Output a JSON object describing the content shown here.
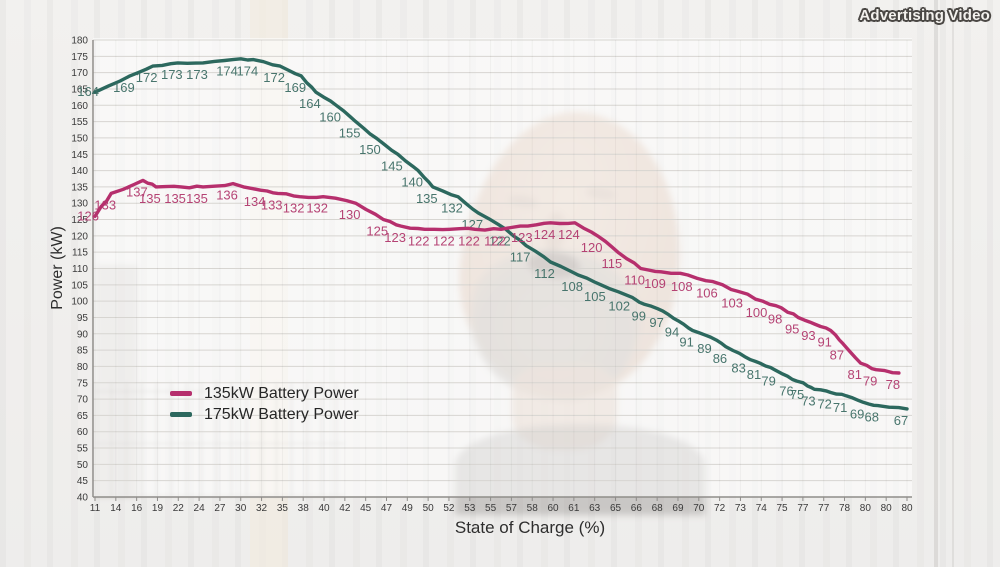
{
  "badge": {
    "label": "Advertising Video"
  },
  "chart_data": {
    "type": "line",
    "title": "",
    "xlabel": "State of Charge (%)",
    "ylabel": "Power (kW)",
    "ylim": [
      40,
      180
    ],
    "ytick_step": 5,
    "grid": true,
    "legend_position": "inside-lower-left",
    "x_tick_labels": [
      "11",
      "14",
      "16",
      "19",
      "22",
      "24",
      "27",
      "30",
      "32",
      "35",
      "38",
      "40",
      "42",
      "45",
      "47",
      "49",
      "50",
      "52",
      "53",
      "55",
      "57",
      "58",
      "60",
      "61",
      "63",
      "65",
      "66",
      "68",
      "69",
      "70",
      "72",
      "73",
      "74",
      "75",
      "77",
      "77",
      "78",
      "80",
      "80",
      "80"
    ],
    "series": [
      {
        "name": "135kW Battery Power",
        "color": "#b62f6d",
        "label_color": "#b23a6e",
        "values": [
          126,
          133,
          137,
          135,
          135,
          135,
          136,
          134,
          133,
          132,
          132,
          130,
          125,
          123,
          122,
          122,
          122,
          122,
          123,
          124,
          124,
          120,
          115,
          110,
          109,
          108,
          106,
          103,
          100,
          98,
          95,
          93,
          91,
          87,
          81,
          79,
          78
        ],
        "x_frac": [
          0,
          0.02,
          0.059,
          0.075,
          0.106,
          0.133,
          0.17,
          0.204,
          0.225,
          0.252,
          0.281,
          0.321,
          0.355,
          0.377,
          0.406,
          0.437,
          0.468,
          0.5,
          0.533,
          0.561,
          0.591,
          0.619,
          0.644,
          0.672,
          0.697,
          0.73,
          0.761,
          0.792,
          0.822,
          0.845,
          0.866,
          0.886,
          0.906,
          0.921,
          0.943,
          0.962,
          0.99
        ]
      },
      {
        "name": "175kW Battery Power",
        "color": "#2c685e",
        "label_color": "#3f6f66",
        "values": [
          164,
          169,
          172,
          173,
          173,
          174,
          174,
          172,
          169,
          164,
          160,
          155,
          150,
          145,
          140,
          135,
          132,
          127,
          122,
          117,
          112,
          108,
          105,
          102,
          99,
          97,
          94,
          91,
          89,
          86,
          83,
          81,
          79,
          76,
          75,
          73,
          72,
          71,
          69,
          68,
          67
        ],
        "x_frac": [
          0,
          0.043,
          0.071,
          0.102,
          0.133,
          0.17,
          0.195,
          0.228,
          0.254,
          0.272,
          0.297,
          0.321,
          0.346,
          0.373,
          0.398,
          0.416,
          0.447,
          0.472,
          0.506,
          0.531,
          0.561,
          0.595,
          0.623,
          0.653,
          0.677,
          0.699,
          0.718,
          0.736,
          0.758,
          0.777,
          0.8,
          0.819,
          0.837,
          0.859,
          0.872,
          0.886,
          0.906,
          0.925,
          0.946,
          0.964,
          1.0
        ]
      }
    ]
  }
}
